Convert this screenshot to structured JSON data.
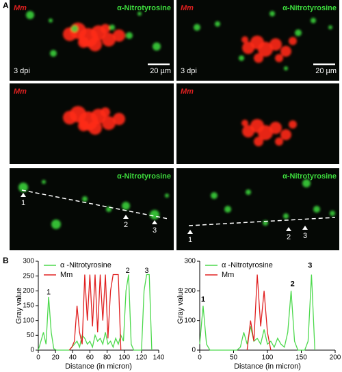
{
  "panel_labels": [
    "A",
    "B"
  ],
  "images": [
    {
      "mm": "Mm",
      "stain": "α-Nitrotyrosine",
      "time": "3 dpi",
      "scale": "20 µm"
    },
    {
      "mm": "Mm",
      "stain": "α-Nitrotyrosine",
      "time": "3 dpi",
      "scale": "20 µm"
    },
    {
      "mm": "Mm"
    },
    {
      "mm": "Mm"
    },
    {
      "stain": "α-Nitrotyrosine",
      "markers": [
        "1",
        "2",
        "3"
      ]
    },
    {
      "stain": "α-Nitrotyrosine",
      "markers": [
        "1",
        "2",
        "3"
      ]
    }
  ],
  "chart_data": [
    {
      "type": "line",
      "xlabel": "Distance (in micron)",
      "ylabel": "Gray value",
      "xlim": [
        0,
        140
      ],
      "xticks": [
        0,
        20,
        40,
        60,
        80,
        100,
        120,
        140
      ],
      "ylim": [
        0,
        300
      ],
      "yticks": [
        0,
        50,
        100,
        150,
        200,
        250,
        300
      ],
      "x": [
        0,
        3,
        6,
        9,
        12,
        15,
        18,
        21,
        24,
        27,
        30,
        33,
        36,
        39,
        42,
        45,
        48,
        51,
        54,
        57,
        60,
        63,
        66,
        69,
        72,
        75,
        78,
        81,
        84,
        87,
        90,
        93,
        96,
        99,
        102,
        105,
        108,
        111,
        114,
        117,
        120,
        123,
        126,
        129,
        132
      ],
      "series": [
        {
          "name": "α -Nitrotyrosine",
          "color": "#4cd94c",
          "values": [
            0,
            30,
            60,
            20,
            180,
            60,
            5,
            0,
            0,
            0,
            0,
            0,
            0,
            10,
            20,
            30,
            10,
            50,
            40,
            20,
            30,
            10,
            50,
            30,
            40,
            20,
            60,
            20,
            30,
            10,
            40,
            20,
            50,
            30,
            200,
            255,
            20,
            0,
            0,
            0,
            0,
            200,
            255,
            255,
            0
          ]
        },
        {
          "name": "Mm",
          "color": "#e02020",
          "values": [
            null,
            null,
            null,
            null,
            null,
            null,
            null,
            null,
            null,
            null,
            null,
            null,
            0,
            10,
            30,
            150,
            60,
            20,
            255,
            100,
            255,
            80,
            255,
            60,
            255,
            100,
            255,
            40,
            200,
            255,
            255,
            255,
            0,
            null,
            null,
            null,
            null,
            null,
            null,
            null,
            null,
            null,
            null,
            null,
            null
          ]
        }
      ],
      "annotations": [
        {
          "text": "1",
          "x": 12,
          "y": 195
        },
        {
          "text": "2",
          "x": 104,
          "y": 268
        },
        {
          "text": "3",
          "x": 126,
          "y": 268
        }
      ]
    },
    {
      "type": "line",
      "xlabel": "Distance (in micron)",
      "ylabel": "Gray value",
      "xlim": [
        0,
        200
      ],
      "xticks": [
        0,
        50,
        100,
        150,
        200
      ],
      "ylim": [
        0,
        300
      ],
      "yticks": [
        0,
        100,
        200,
        300
      ],
      "x": [
        0,
        5,
        10,
        15,
        20,
        25,
        30,
        35,
        40,
        45,
        50,
        55,
        60,
        65,
        70,
        75,
        80,
        85,
        90,
        95,
        100,
        105,
        110,
        115,
        120,
        125,
        130,
        135,
        140,
        145,
        150,
        155,
        160,
        165,
        170
      ],
      "series": [
        {
          "name": "α -Nitrotyrosine",
          "color": "#4cd94c",
          "values": [
            20,
            150,
            20,
            0,
            0,
            0,
            0,
            0,
            0,
            0,
            0,
            0,
            10,
            60,
            20,
            80,
            30,
            40,
            20,
            70,
            20,
            30,
            10,
            40,
            20,
            10,
            60,
            200,
            30,
            0,
            0,
            0,
            30,
            255,
            0
          ]
        },
        {
          "name": "Mm",
          "color": "#e02020",
          "values": [
            null,
            null,
            null,
            null,
            null,
            null,
            null,
            null,
            null,
            null,
            null,
            null,
            null,
            null,
            0,
            100,
            30,
            255,
            80,
            200,
            60,
            0,
            null,
            null,
            null,
            null,
            null,
            null,
            null,
            null,
            null,
            null,
            null,
            null,
            null
          ]
        }
      ],
      "annotations": [
        {
          "text": "1",
          "x": 5,
          "y": 170
        },
        {
          "text": "2",
          "x": 137,
          "y": 222
        },
        {
          "text": "3",
          "x": 163,
          "y": 285
        }
      ]
    }
  ]
}
